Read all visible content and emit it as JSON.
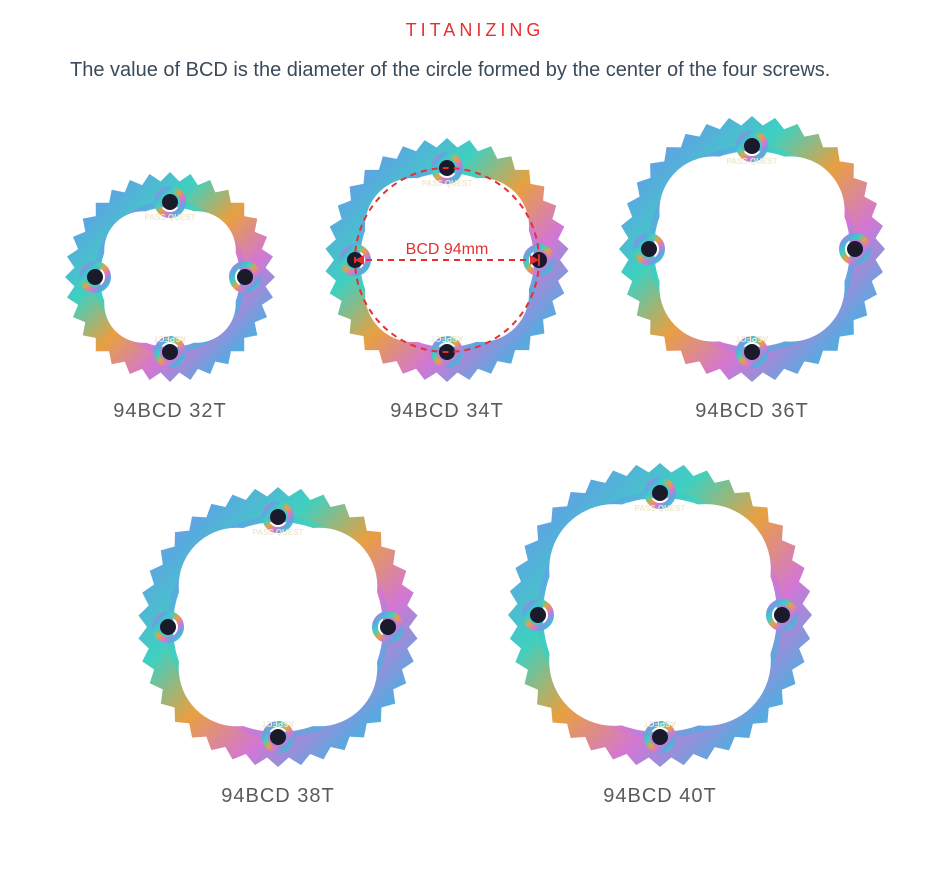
{
  "heading": {
    "text": "TITANIZING",
    "color": "#e83030"
  },
  "description": {
    "text": "The value of BCD is the diameter of the circle formed by the center of the four screws.",
    "color": "#3a4a5a"
  },
  "bcd_annotation": {
    "text": "BCD 94mm",
    "color": "#e63030",
    "dash_color": "#e63030"
  },
  "chainrings": [
    {
      "label": "94BCD 32T",
      "teeth": 32,
      "diameter": 210,
      "show_bcd": false
    },
    {
      "label": "94BCD 34T",
      "teeth": 34,
      "diameter": 244,
      "show_bcd": true
    },
    {
      "label": "94BCD 36T",
      "teeth": 36,
      "diameter": 266,
      "show_bcd": false
    },
    {
      "label": "94BCD 38T",
      "teeth": 38,
      "diameter": 280,
      "show_bcd": false
    },
    {
      "label": "94BCD 40T",
      "teeth": 40,
      "diameter": 304,
      "show_bcd": false
    }
  ],
  "rainbow_colors": [
    "#d376d4",
    "#5aa8e0",
    "#3ed0c0",
    "#e8a040",
    "#d376d4",
    "#5aa8e0",
    "#3ed0c0"
  ],
  "brand_top": "PASS QUEST",
  "brand_bottom": "ASPECT",
  "text_on_ring_color": "#f0e8d0",
  "label_color": "#5a5a5a"
}
